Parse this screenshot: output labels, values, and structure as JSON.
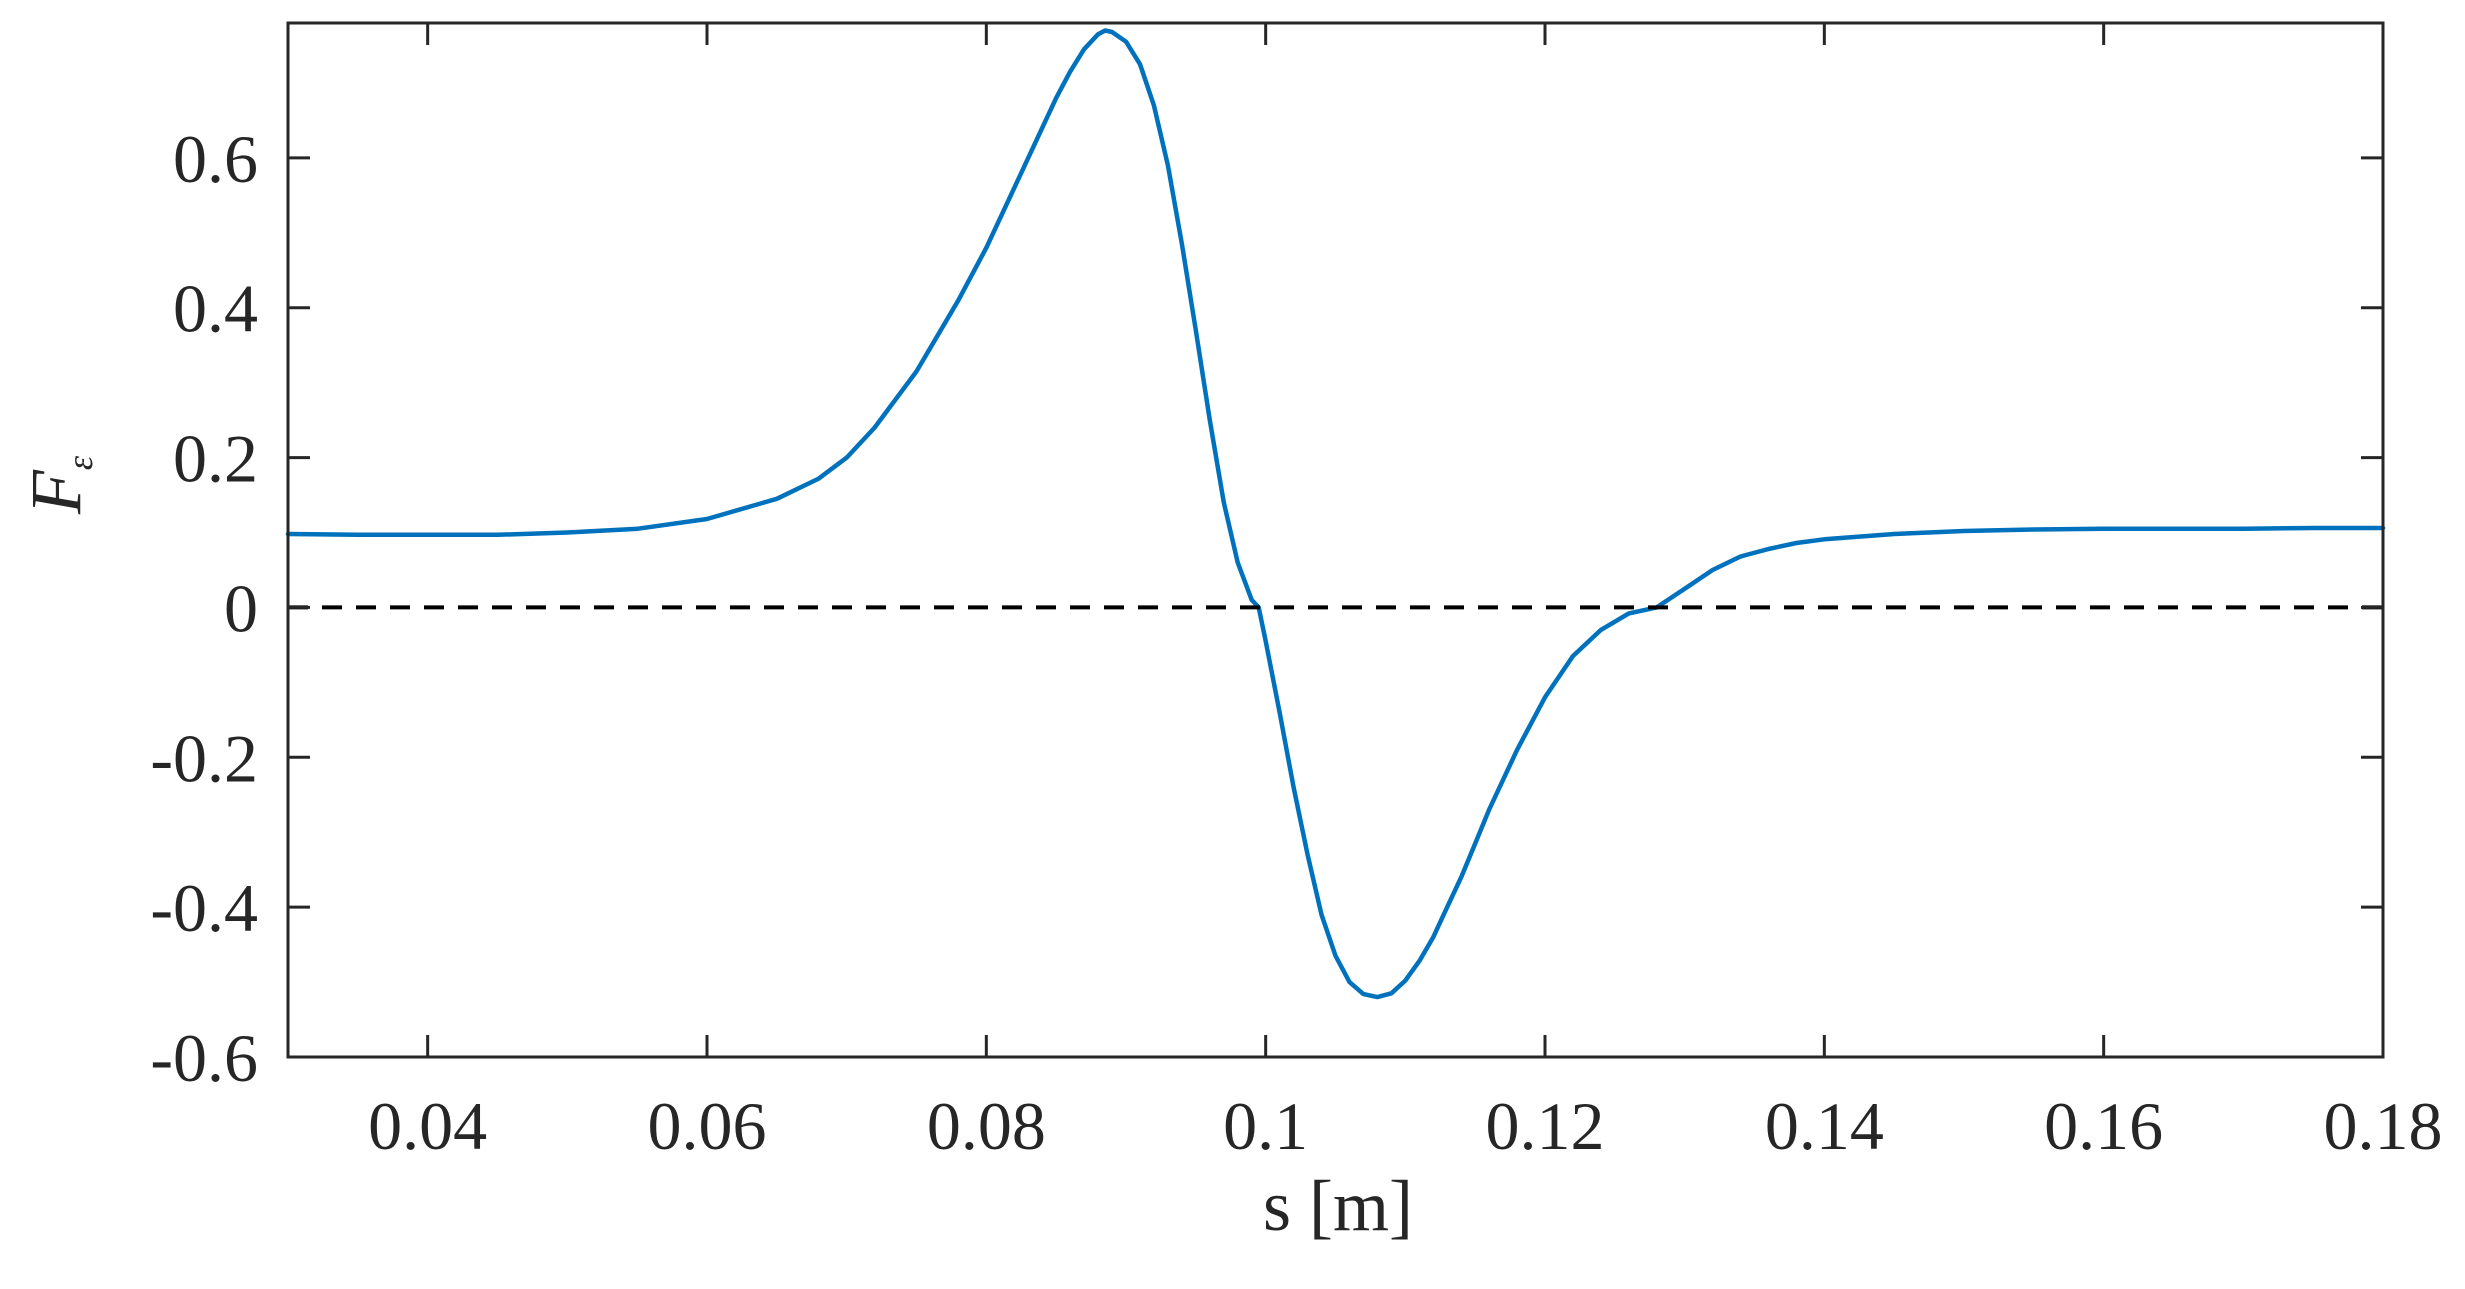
{
  "chart_data": {
    "type": "line",
    "xlabel": "s [m]",
    "ylabel": {
      "main": "F",
      "sub": "ε"
    },
    "xlim": [
      0.03,
      0.18
    ],
    "ylim": [
      -0.6,
      0.78
    ],
    "xticks": [
      0.04,
      0.06,
      0.08,
      0.1,
      0.12,
      0.14,
      0.16,
      0.18
    ],
    "xtick_labels": [
      "0.04",
      "0.06",
      "0.08",
      "0.1",
      "0.12",
      "0.14",
      "0.16",
      "0.18"
    ],
    "yticks": [
      -0.6,
      -0.4,
      -0.2,
      0,
      0.2,
      0.4,
      0.6
    ],
    "ytick_labels": [
      "-0.6",
      "-0.4",
      "-0.2",
      "0",
      "0.2",
      "0.4",
      "0.6"
    ],
    "grid": false,
    "series": [
      {
        "color": "#0072BD",
        "style": "solid",
        "x": [
          0.03,
          0.035,
          0.04,
          0.045,
          0.05,
          0.055,
          0.06,
          0.065,
          0.068,
          0.07,
          0.072,
          0.075,
          0.078,
          0.08,
          0.082,
          0.084,
          0.085,
          0.086,
          0.087,
          0.088,
          0.0885,
          0.089,
          0.09,
          0.091,
          0.092,
          0.093,
          0.094,
          0.095,
          0.096,
          0.097,
          0.098,
          0.099,
          0.0995,
          0.1,
          0.101,
          0.102,
          0.103,
          0.104,
          0.105,
          0.106,
          0.107,
          0.108,
          0.109,
          0.11,
          0.111,
          0.112,
          0.113,
          0.114,
          0.115,
          0.116,
          0.118,
          0.12,
          0.122,
          0.124,
          0.126,
          0.128,
          0.13,
          0.132,
          0.134,
          0.136,
          0.138,
          0.14,
          0.145,
          0.15,
          0.155,
          0.16,
          0.165,
          0.17,
          0.175,
          0.18
        ],
        "y": [
          0.098,
          0.097,
          0.097,
          0.097,
          0.1,
          0.105,
          0.118,
          0.145,
          0.172,
          0.2,
          0.24,
          0.315,
          0.41,
          0.48,
          0.56,
          0.64,
          0.68,
          0.715,
          0.745,
          0.765,
          0.77,
          0.768,
          0.755,
          0.725,
          0.67,
          0.59,
          0.485,
          0.37,
          0.25,
          0.14,
          0.06,
          0.01,
          0.0,
          -0.045,
          -0.14,
          -0.24,
          -0.33,
          -0.41,
          -0.465,
          -0.5,
          -0.516,
          -0.52,
          -0.515,
          -0.498,
          -0.472,
          -0.44,
          -0.4,
          -0.36,
          -0.315,
          -0.27,
          -0.19,
          -0.12,
          -0.065,
          -0.03,
          -0.008,
          0.0,
          0.025,
          0.05,
          0.068,
          0.078,
          0.086,
          0.091,
          0.098,
          0.102,
          0.104,
          0.105,
          0.105,
          0.105,
          0.106,
          0.106
        ]
      },
      {
        "color": "#000000",
        "style": "dashed",
        "x": [
          0.03,
          0.18
        ],
        "y": [
          0,
          0
        ]
      }
    ]
  }
}
